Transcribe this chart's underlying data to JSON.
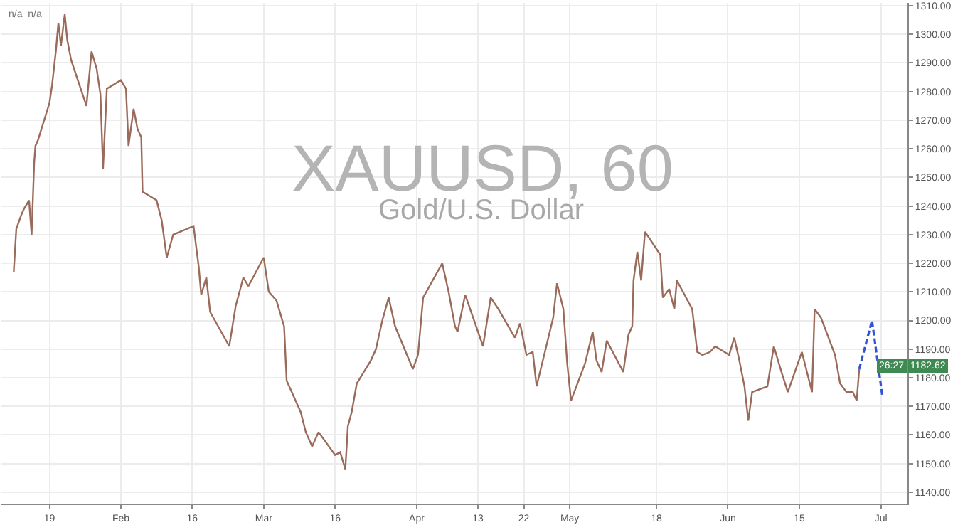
{
  "chart_data": {
    "type": "line",
    "title": "XAUUSD, 60",
    "subtitle": "Gold/U.S. Dollar",
    "annotations": [
      "n/a  n/a",
      "1182.62",
      "26:27"
    ],
    "xlim": [
      "--01-09T14:00",
      "--07-06T05:00"
    ],
    "xticks": [
      {
        "value": "--01-19",
        "label": "19"
      },
      {
        "value": "--02-02",
        "label": "Feb"
      },
      {
        "value": "--02-16",
        "label": "16"
      },
      {
        "value": "--03-02",
        "label": "Mar"
      },
      {
        "value": "--03-16",
        "label": "16"
      },
      {
        "value": "--04-01",
        "label": "Apr"
      },
      {
        "value": "--04-13",
        "label": "13"
      },
      {
        "value": "--04-22",
        "label": "22"
      },
      {
        "value": "--05-01",
        "label": "May"
      },
      {
        "value": "--05-18",
        "label": "18"
      },
      {
        "value": "--06-01",
        "label": "Jun"
      },
      {
        "value": "--06-15",
        "label": "15"
      },
      {
        "value": "--07-01",
        "label": "Jul"
      }
    ],
    "ylim": [
      1136,
      1311
    ],
    "yticks": [
      {
        "value": 1140,
        "label": "1140.00"
      },
      {
        "value": 1150,
        "label": "1150.00"
      },
      {
        "value": 1160,
        "label": "1160.00"
      },
      {
        "value": 1170,
        "label": "1170.00"
      },
      {
        "value": 1180,
        "label": "1180.00"
      },
      {
        "value": 1190,
        "label": "1190.00"
      },
      {
        "value": 1200,
        "label": "1200.00"
      },
      {
        "value": 1210,
        "label": "1210.00"
      },
      {
        "value": 1220,
        "label": "1220.00"
      },
      {
        "value": 1230,
        "label": "1230.00"
      },
      {
        "value": 1240,
        "label": "1240.00"
      },
      {
        "value": 1250,
        "label": "1250.00"
      },
      {
        "value": 1260,
        "label": "1260.00"
      },
      {
        "value": 1270,
        "label": "1270.00"
      },
      {
        "value": 1280,
        "label": "1280.00"
      },
      {
        "value": 1290,
        "label": "1290.00"
      },
      {
        "value": 1300,
        "label": "1300.00"
      },
      {
        "value": 1310,
        "label": "1310.00"
      }
    ],
    "grid": true,
    "marker": "none",
    "series": [
      {
        "color": "#9a6b5a",
        "line_style": "solid",
        "x": [
          "--01-12",
          "--01-12T12:00",
          "--01-13T12:00",
          "--01-14",
          "--01-15",
          "--01-15T12:00",
          "--01-16",
          "--01-16T06:00",
          "--01-16T18:00",
          "--01-19",
          "--01-19T12:00",
          "--01-20T06:00",
          "--01-20T18:00",
          "--01-21T06:00",
          "--01-22",
          "--01-22T12:00",
          "--01-23T06:00",
          "--01-26T06:00",
          "--01-27T06:00",
          "--01-28T06:00",
          "--01-29",
          "--01-29T12:00",
          "--01-30T06:00",
          "--02-02",
          "--02-03",
          "--02-03T12:00",
          "--02-04T12:00",
          "--02-05T06:00",
          "--02-06",
          "--02-06T06:00",
          "--02-09",
          "--02-10",
          "--02-11",
          "--02-12T06:00",
          "--02-16T06:00",
          "--02-17T06:00",
          "--02-17T18:00",
          "--02-18T18:00",
          "--02-19T12:00",
          "--02-23T06:00",
          "--02-24T12:00",
          "--02-26",
          "--02-27",
          "--03-02",
          "--03-03",
          "--03-04T12:00",
          "--03-06",
          "--03-06T12:00",
          "--03-09T06:00",
          "--03-10T06:00",
          "--03-11T12:00",
          "--03-12T18:00",
          "--03-16",
          "--03-17",
          "--03-18",
          "--03-18T12:00",
          "--03-19T06:00",
          "--03-20T06:00",
          "--03-23",
          "--03-24",
          "--03-25T06:00",
          "--03-26T12:00",
          "--03-27T18:00",
          "--03-31T06:00",
          "--04-01T06:00",
          "--04-02T06:00",
          "--04-03T12:00",
          "--04-06",
          "--04-07T06:00",
          "--04-08T12:00",
          "--04-09",
          "--04-10T12:00",
          "--04-14",
          "--04-15T12:00",
          "--04-17",
          "--04-20T06:00",
          "--04-21T06:00",
          "--04-22T12:00",
          "--04-23T18:00",
          "--04-24T12:00",
          "--04-27T18:00",
          "--04-28T12:00",
          "--04-29T18:00",
          "--04-30T12:00",
          "--05-01T06:00",
          "--05-04",
          "--05-05T12:00",
          "--05-06T06:00",
          "--05-07T06:00",
          "--05-08T06:00",
          "--05-11T12:00",
          "--05-12T12:00",
          "--05-13T06:00",
          "--05-13T12:00",
          "--05-14T06:00",
          "--05-15",
          "--05-15T18:00",
          "--05-18T18:00",
          "--05-19T06:00",
          "--05-20T12:00",
          "--05-21T12:00",
          "--05-22",
          "--05-25",
          "--05-26",
          "--05-27",
          "--05-28T12:00",
          "--05-29T12:00",
          "--06-01T06:00",
          "--06-02T06:00",
          "--06-03T06:00",
          "--06-04T06:00",
          "--06-05",
          "--06-05T18:00",
          "--06-08T18:00",
          "--06-10",
          "--06-11T12:00",
          "--06-12T18:00",
          "--06-15T12:00",
          "--06-16T12:00",
          "--06-17T12:00",
          "--06-18",
          "--06-19T06:00",
          "--06-22",
          "--06-23",
          "--06-24T06:00",
          "--06-25T12:00",
          "--06-26T06:00",
          "--06-26T18:00"
        ],
        "values": [
          1217,
          1232,
          1237,
          1239,
          1242,
          1230,
          1255,
          1261,
          1263,
          1276,
          1282,
          1294,
          1304,
          1296,
          1307,
          1298,
          1291,
          1275,
          1294,
          1288,
          1279,
          1253,
          1281,
          1284,
          1281,
          1261,
          1274,
          1267,
          1264,
          1245,
          1242,
          1235,
          1222,
          1230,
          1233,
          1219,
          1209,
          1215,
          1203,
          1191,
          1205,
          1215,
          1212,
          1222,
          1210,
          1207,
          1198,
          1179,
          1168,
          1161,
          1156,
          1161,
          1153,
          1154,
          1148,
          1163,
          1168,
          1178,
          1186,
          1190,
          1200,
          1208,
          1198,
          1183,
          1188,
          1208,
          1212,
          1220,
          1210,
          1198,
          1196,
          1209,
          1191,
          1208,
          1204,
          1194,
          1199,
          1188,
          1189,
          1177,
          1201,
          1213,
          1204,
          1185,
          1172,
          1185,
          1196,
          1186,
          1182,
          1193,
          1182,
          1195,
          1198,
          1214,
          1224,
          1214,
          1231,
          1223,
          1208,
          1211,
          1204,
          1214,
          1204,
          1189,
          1188,
          1189,
          1191,
          1188,
          1194,
          1186,
          1177,
          1165,
          1175,
          1177,
          1191,
          1182,
          1175,
          1189,
          1182,
          1175,
          1204,
          1201,
          1188,
          1178,
          1175,
          1175,
          1172,
          1183
        ]
      },
      {
        "color": "#2f55d4",
        "line_style": "dashed",
        "x": [
          "--06-26T18:00",
          "--06-29T06:00",
          "--07-01T06:00"
        ],
        "values": [
          1183,
          1200,
          1174
        ]
      }
    ]
  }
}
